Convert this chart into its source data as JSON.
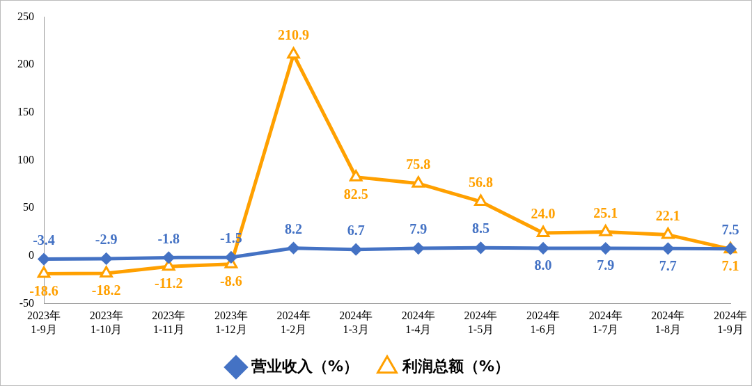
{
  "chart_data": {
    "type": "line",
    "categories": [
      "2023年\n1-9月",
      "2023年\n1-10月",
      "2023年\n1-11月",
      "2023年\n1-12月",
      "2024年\n1-2月",
      "2024年\n1-3月",
      "2024年\n1-4月",
      "2024年\n1-5月",
      "2024年\n1-6月",
      "2024年\n1-7月",
      "2024年\n1-8月",
      "2024年\n1-9月"
    ],
    "series": [
      {
        "name": "营业收入（%）",
        "color": "#4472c4",
        "marker": "diamond",
        "values": [
          -3.4,
          -2.9,
          -1.8,
          -1.5,
          8.2,
          6.7,
          7.9,
          8.5,
          8.0,
          7.9,
          7.7,
          7.5
        ],
        "value_labels": [
          "-3.4",
          "-2.9",
          "-1.8",
          "-1.5",
          "8.2",
          "6.7",
          "7.9",
          "8.5",
          "8.0",
          "7.9",
          "7.7",
          "7.5"
        ]
      },
      {
        "name": "利润总额（%）",
        "color": "#ffa000",
        "marker": "triangle",
        "values": [
          -18.6,
          -18.2,
          -11.2,
          -8.6,
          210.9,
          82.5,
          75.8,
          56.8,
          24.0,
          25.1,
          22.1,
          7.1
        ],
        "value_labels": [
          "-18.6",
          "-18.2",
          "-11.2",
          "-8.6",
          "210.9",
          "82.5",
          "75.8",
          "56.8",
          "24.0",
          "25.1",
          "22.1",
          "7.1"
        ]
      }
    ],
    "ylim": [
      -50,
      250
    ],
    "yticks": [
      -50,
      0,
      50,
      100,
      150,
      200,
      250
    ],
    "grid": false,
    "legend": "bottom",
    "line_style": "solid"
  }
}
